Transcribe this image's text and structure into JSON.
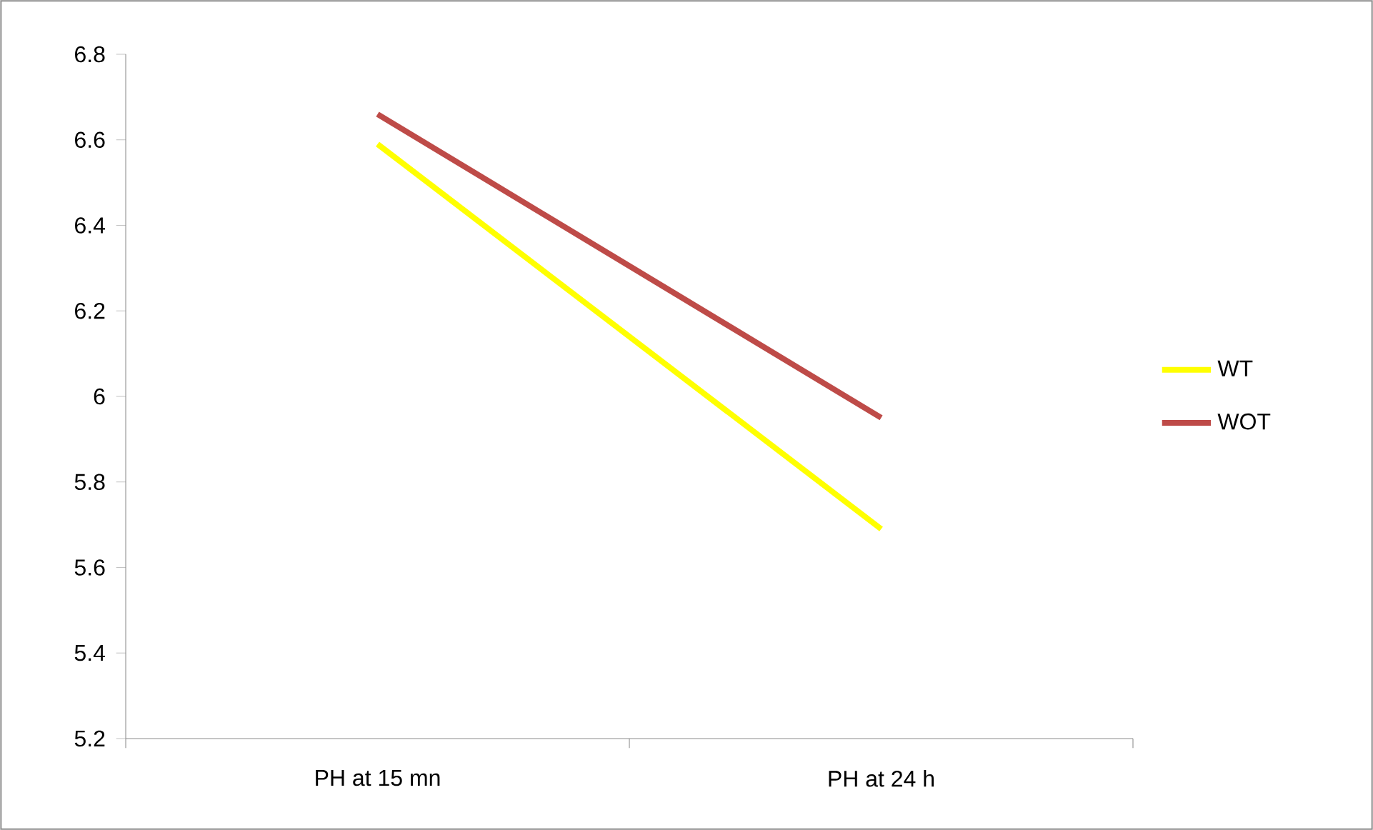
{
  "chart_data": {
    "type": "line",
    "categories": [
      "PH at 15 mn",
      "PH at 24 h"
    ],
    "series": [
      {
        "name": "WT",
        "color": "#ffff00",
        "values": [
          6.59,
          5.69
        ]
      },
      {
        "name": "WOT",
        "color": "#be4b48",
        "values": [
          6.66,
          5.95
        ]
      }
    ],
    "ylim": [
      5.2,
      6.8
    ],
    "yticks": [
      5.2,
      5.4,
      5.6,
      5.8,
      6,
      6.2,
      6.4,
      6.6,
      6.8
    ],
    "grid": false,
    "legend": "right",
    "marker": "none",
    "line_style": "solid"
  }
}
